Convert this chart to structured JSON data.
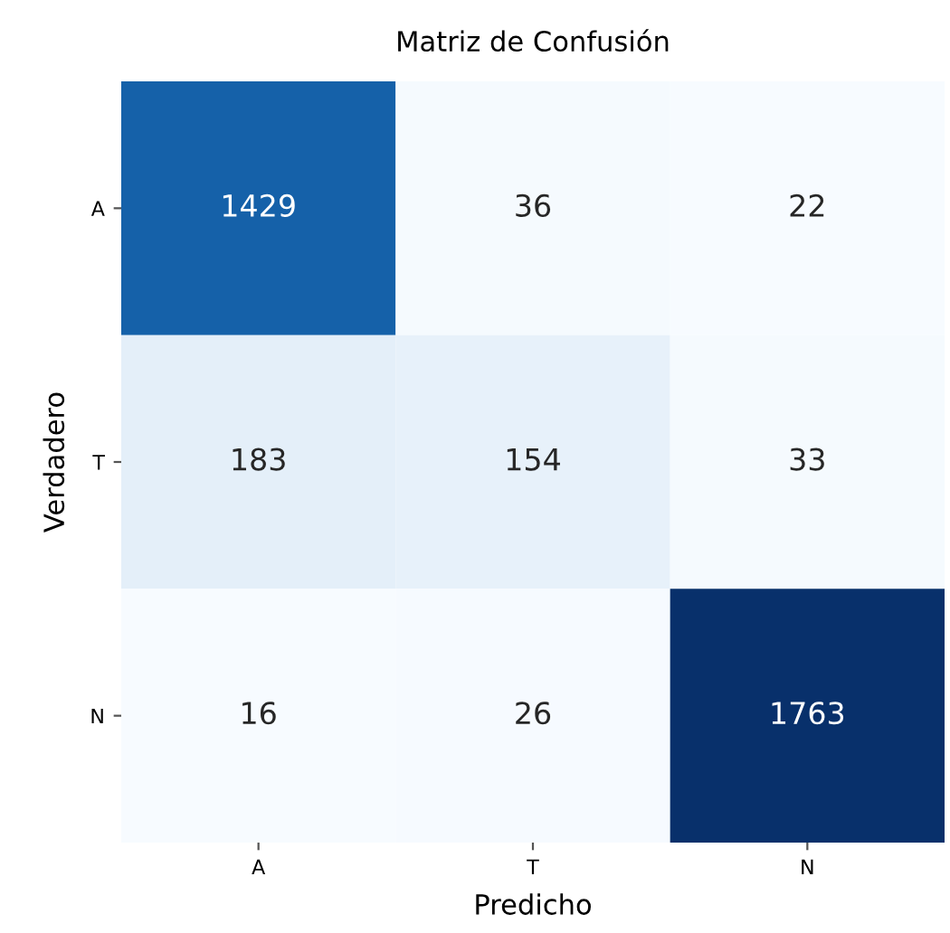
{
  "chart_data": {
    "type": "heatmap",
    "title": "Matriz de Confusión",
    "xlabel": "Predicho",
    "ylabel": "Verdadero",
    "categories": [
      "A",
      "T",
      "N"
    ],
    "y_categories": [
      "A",
      "T",
      "N"
    ],
    "cells": [
      [
        1429,
        36,
        22
      ],
      [
        183,
        154,
        33
      ],
      [
        16,
        26,
        1763
      ]
    ],
    "data_labels": true
  }
}
